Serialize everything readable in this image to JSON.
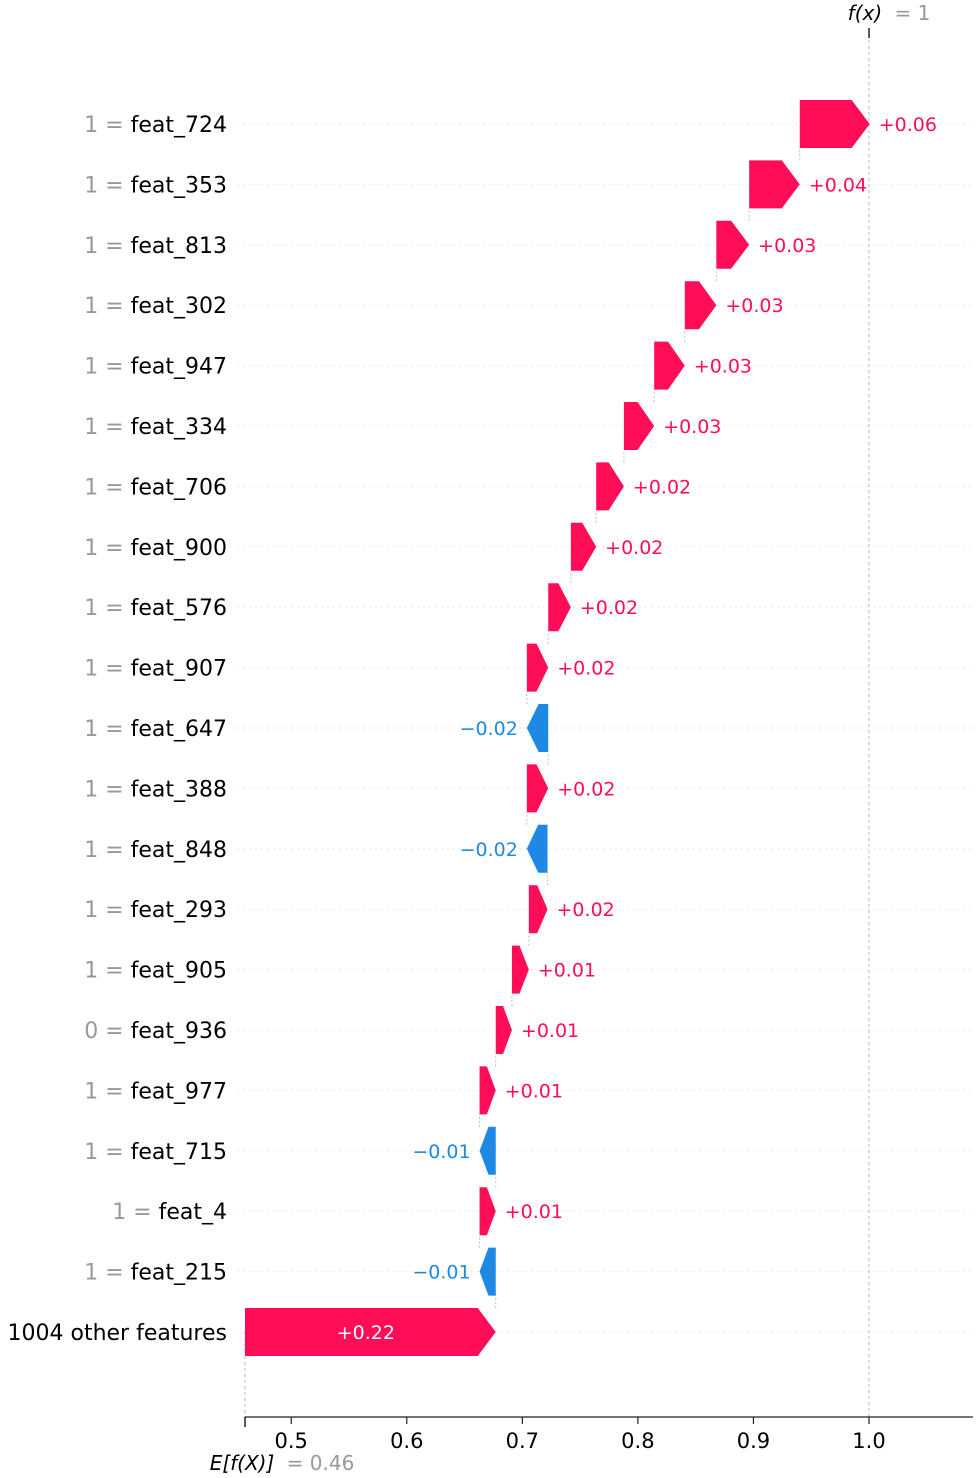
{
  "chart_data": {
    "type": "waterfall",
    "title": "",
    "xlabel": "",
    "ylabel": "",
    "base_value": 0.46,
    "output_value": 1,
    "base_label": "E[f(X)]",
    "base_value_text": "= 0.46",
    "output_label": "f(x)",
    "output_value_text": "= 1",
    "xlim": [
      0.46,
      1.09
    ],
    "x_ticks": [
      {
        "value": 0.5,
        "label": "0.5"
      },
      {
        "value": 0.6,
        "label": "0.6"
      },
      {
        "value": 0.7,
        "label": "0.7"
      },
      {
        "value": 0.8,
        "label": "0.8"
      },
      {
        "value": 0.9,
        "label": "0.9"
      },
      {
        "value": 1.0,
        "label": "1.0"
      }
    ],
    "colors": {
      "positive": "#ff0d57",
      "negative": "#1e88e5",
      "value_text": "#999999",
      "grid": "#cccccc"
    },
    "features": [
      {
        "value_text": "1",
        "equals": "=",
        "name": "feat_724",
        "shap": 0.0605,
        "label": "+0.06"
      },
      {
        "value_text": "1",
        "equals": "=",
        "name": "feat_353",
        "shap": 0.0438,
        "label": "+0.04"
      },
      {
        "value_text": "1",
        "equals": "=",
        "name": "feat_813",
        "shap": 0.0284,
        "label": "+0.03"
      },
      {
        "value_text": "1",
        "equals": "=",
        "name": "feat_302",
        "shap": 0.0273,
        "label": "+0.03"
      },
      {
        "value_text": "1",
        "equals": "=",
        "name": "feat_947",
        "shap": 0.0265,
        "label": "+0.03"
      },
      {
        "value_text": "1",
        "equals": "=",
        "name": "feat_334",
        "shap": 0.0262,
        "label": "+0.03"
      },
      {
        "value_text": "1",
        "equals": "=",
        "name": "feat_706",
        "shap": 0.024,
        "label": "+0.02"
      },
      {
        "value_text": "1",
        "equals": "=",
        "name": "feat_900",
        "shap": 0.0219,
        "label": "+0.02"
      },
      {
        "value_text": "1",
        "equals": "=",
        "name": "feat_576",
        "shap": 0.0196,
        "label": "+0.02"
      },
      {
        "value_text": "1",
        "equals": "=",
        "name": "feat_907",
        "shap": 0.0185,
        "label": "+0.02"
      },
      {
        "value_text": "1",
        "equals": "=",
        "name": "feat_647",
        "shap": -0.0185,
        "label": "−0.02"
      },
      {
        "value_text": "1",
        "equals": "=",
        "name": "feat_388",
        "shap": 0.0185,
        "label": "+0.02"
      },
      {
        "value_text": "1",
        "equals": "=",
        "name": "feat_848",
        "shap": -0.0179,
        "label": "−0.02"
      },
      {
        "value_text": "1",
        "equals": "=",
        "name": "feat_293",
        "shap": 0.0162,
        "label": "+0.02"
      },
      {
        "value_text": "1",
        "equals": "=",
        "name": "feat_905",
        "shap": 0.0146,
        "label": "+0.01"
      },
      {
        "value_text": "0",
        "equals": "=",
        "name": "feat_936",
        "shap": 0.014,
        "label": "+0.01"
      },
      {
        "value_text": "1",
        "equals": "=",
        "name": "feat_977",
        "shap": 0.014,
        "label": "+0.01"
      },
      {
        "value_text": "1",
        "equals": "=",
        "name": "feat_715",
        "shap": -0.014,
        "label": "−0.01"
      },
      {
        "value_text": "1",
        "equals": "=",
        "name": "feat_4",
        "shap": 0.014,
        "label": "+0.01"
      },
      {
        "value_text": "1",
        "equals": "=",
        "name": "feat_215",
        "shap": -0.014,
        "label": "−0.01"
      },
      {
        "value_text": "",
        "equals": "",
        "name": "1004 other features",
        "shap": 0.217,
        "label": "+0.22"
      }
    ]
  }
}
